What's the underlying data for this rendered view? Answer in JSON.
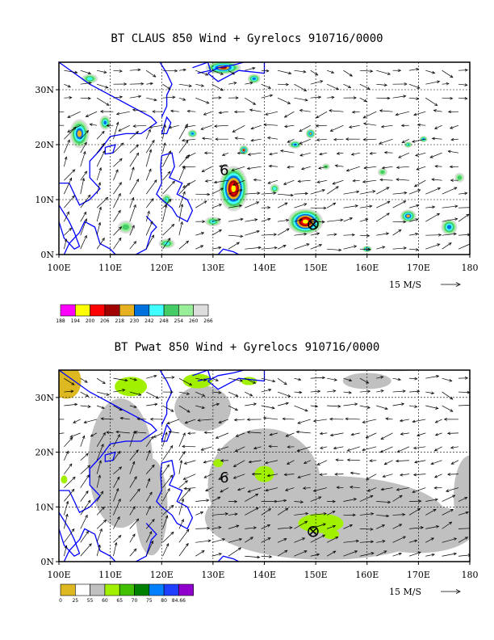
{
  "panels": [
    {
      "id": "claus",
      "title": "BT CLAUS 850 Wind + Gyrelocs 910716/0000",
      "colorbar": {
        "colors": [
          "#ff00ff",
          "#ffff00",
          "#ff0000",
          "#a00000",
          "#e6b020",
          "#0070dd",
          "#40ffff",
          "#44cc66",
          "#99ee99",
          "#dddddd"
        ],
        "labels": [
          "188",
          "194",
          "200",
          "206",
          "218",
          "230",
          "242",
          "248",
          "254",
          "260",
          "266"
        ]
      }
    },
    {
      "id": "pwat",
      "title": "BT Pwat 850 Wind + Gyrelocs 910716/0000",
      "colorbar": {
        "colors": [
          "#ddb820",
          "#ffffff",
          "#c0c0c0",
          "#a0f000",
          "#40c000",
          "#008000",
          "#0080ff",
          "#2040ff",
          "#9000cc"
        ],
        "labels": [
          "0",
          "25",
          "55",
          "60",
          "65",
          "70",
          "75",
          "80",
          "84.66"
        ]
      }
    }
  ],
  "map": {
    "lon_ticks": [
      "100E",
      "110E",
      "120E",
      "130E",
      "140E",
      "150E",
      "160E",
      "170E",
      "180"
    ],
    "lat_ticks": [
      "0N",
      "10N",
      "20N",
      "30N"
    ],
    "lon_range": [
      100,
      180
    ],
    "lat_range": [
      0,
      35
    ],
    "reference_vector": "15 M/S",
    "coastline_color": "#0000ff",
    "gyre_symbol": "circled-x",
    "gyre_location": [
      149.5,
      5.5
    ],
    "storm_symbol": "6"
  }
}
